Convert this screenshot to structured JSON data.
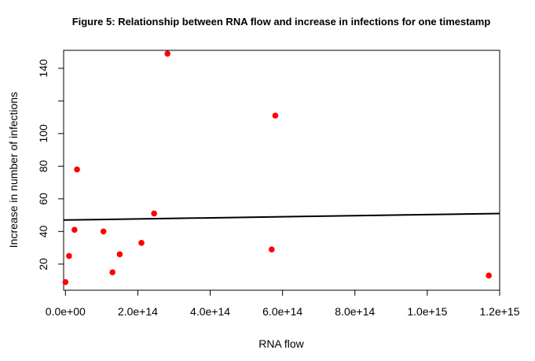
{
  "chart_data": {
    "type": "scatter",
    "title": "Figure 5: Relationship between RNA flow and increase in infections for one timestamp",
    "xlabel": "RNA flow",
    "ylabel": "Increase in number of infections",
    "xlim": [
      -5000000000000.0,
      1200000000000000.0
    ],
    "ylim": [
      4,
      151
    ],
    "xticks": [
      0,
      200000000000000.0,
      400000000000000.0,
      600000000000000.0,
      800000000000000.0,
      1000000000000000.0,
      1200000000000000.0
    ],
    "xtick_labels": [
      "0.0e+00",
      "2.0e+14",
      "4.0e+14",
      "6.0e+14",
      "8.0e+14",
      "1.0e+15",
      "1.2e+15"
    ],
    "yticks": [
      20,
      40,
      60,
      80,
      100,
      120,
      140
    ],
    "ytick_labels": [
      "20",
      "40",
      "60",
      "80",
      "100",
      "",
      "140"
    ],
    "point_color": "#ff0000",
    "points": [
      {
        "x": 0,
        "y": 9
      },
      {
        "x": 10000000000000.0,
        "y": 25
      },
      {
        "x": 25000000000000.0,
        "y": 41
      },
      {
        "x": 32000000000000.0,
        "y": 78
      },
      {
        "x": 105000000000000.0,
        "y": 40
      },
      {
        "x": 130000000000000.0,
        "y": 15
      },
      {
        "x": 150000000000000.0,
        "y": 26
      },
      {
        "x": 210000000000000.0,
        "y": 33
      },
      {
        "x": 245000000000000.0,
        "y": 51
      },
      {
        "x": 282000000000000.0,
        "y": 149
      },
      {
        "x": 570000000000000.0,
        "y": 29
      },
      {
        "x": 580000000000000.0,
        "y": 111
      },
      {
        "x": 1170000000000000.0,
        "y": 13
      }
    ],
    "trend_line": {
      "x": [
        -5000000000000.0,
        1200000000000000.0
      ],
      "y": [
        47,
        51
      ],
      "color": "#000000"
    },
    "grid": false,
    "legend": "none"
  }
}
